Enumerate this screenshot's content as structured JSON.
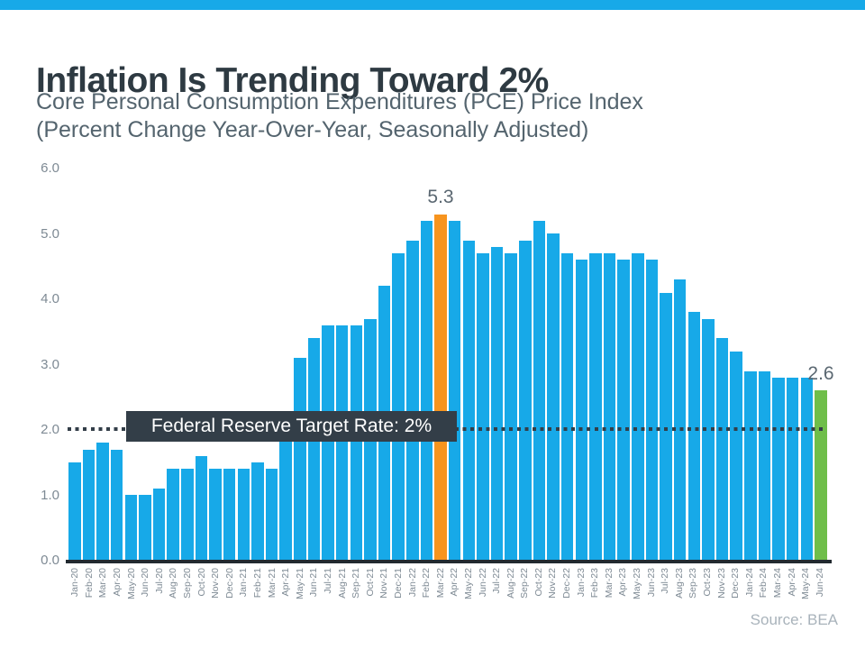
{
  "page": {
    "title": "Inflation Is Trending Toward 2%",
    "subtitle_line1": "Core Personal Consumption Expenditures (PCE) Price Index",
    "subtitle_line2": "(Percent Change Year-Over-Year, Seasonally Adjusted)",
    "source": "Source: BEA",
    "accent_color": "#17A9E8"
  },
  "chart_data": {
    "type": "bar",
    "title": "Inflation Is Trending Toward 2%",
    "subtitle": "Core Personal Consumption Expenditures (PCE) Price Index (Percent Change Year-Over-Year, Seasonally Adjusted)",
    "xlabel": "",
    "ylabel": "",
    "ylim": [
      0,
      6
    ],
    "ytick_labels": [
      "6.0",
      "5.0",
      "4.0",
      "3.0",
      "2.0",
      "1.0",
      "0.0"
    ],
    "grid": false,
    "legend": false,
    "categories": [
      "Jan-20",
      "Feb-20",
      "Mar-20",
      "Apr-20",
      "May-20",
      "Jun-20",
      "Jul-20",
      "Aug-20",
      "Sep-20",
      "Oct-20",
      "Nov-20",
      "Dec-20",
      "Jan-21",
      "Feb-21",
      "Mar-21",
      "Apr-21",
      "May-21",
      "Jun-21",
      "Jul-21",
      "Aug-21",
      "Sep-21",
      "Oct-21",
      "Nov-21",
      "Dec-21",
      "Jan-22",
      "Feb-22",
      "Mar-22",
      "Apr-22",
      "May-22",
      "Jun-22",
      "Jul-22",
      "Aug-22",
      "Sep-22",
      "Oct-22",
      "Nov-22",
      "Dec-22",
      "Jan-23",
      "Feb-23",
      "Mar-23",
      "Apr-23",
      "May-23",
      "Jun-23",
      "Jul-23",
      "Aug-23",
      "Sep-23",
      "Oct-23",
      "Nov-23",
      "Dec-23",
      "Jan-24",
      "Feb-24",
      "Mar-24",
      "Apr-24",
      "May-24",
      "Jun-24"
    ],
    "values": [
      1.5,
      1.7,
      1.8,
      1.7,
      1.0,
      1.0,
      1.1,
      1.4,
      1.4,
      1.6,
      1.4,
      1.4,
      1.4,
      1.5,
      1.4,
      2.0,
      3.1,
      3.4,
      3.6,
      3.6,
      3.6,
      3.7,
      4.2,
      4.7,
      4.9,
      5.2,
      5.3,
      5.2,
      4.9,
      4.7,
      4.8,
      4.7,
      4.9,
      5.2,
      5.0,
      4.7,
      4.6,
      4.7,
      4.7,
      4.6,
      4.7,
      4.6,
      4.1,
      4.3,
      3.8,
      3.7,
      3.4,
      3.2,
      2.9,
      2.9,
      2.8,
      2.8,
      2.8,
      2.6
    ],
    "default_bar_color": "#17A9E8",
    "highlights": [
      {
        "index": 26,
        "category": "Mar-22",
        "value": 5.3,
        "color": "#F7941E",
        "data_label": "5.3"
      },
      {
        "index": 53,
        "category": "Jun-24",
        "value": 2.6,
        "color": "#6FBE4A",
        "data_label": "2.6"
      }
    ],
    "target_line": {
      "value": 2,
      "label": "Federal Reserve Target Rate: 2%",
      "line_style": "dotted",
      "color": "#333E48"
    },
    "source": "Source: BEA"
  }
}
